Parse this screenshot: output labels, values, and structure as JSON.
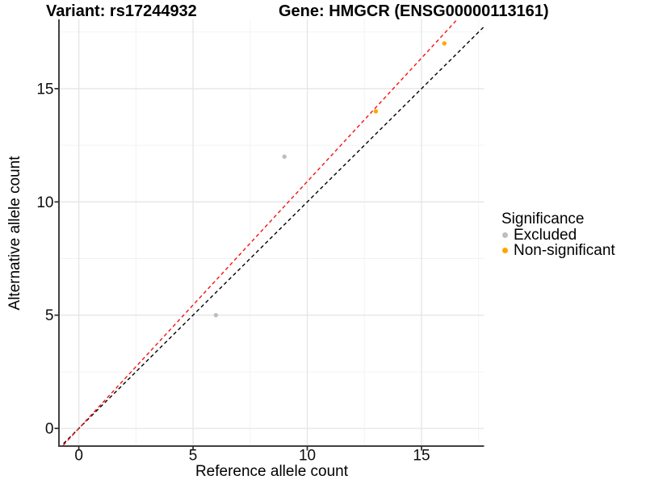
{
  "titles": {
    "variant": "Variant: rs17244932",
    "gene": "Gene: HMGCR (ENSG00000113161)"
  },
  "axes": {
    "x_label": "Reference allele count",
    "y_label": "Alternative allele count"
  },
  "legend": {
    "title": "Significance",
    "items": [
      {
        "label": "Excluded",
        "color": "#BEBEBE"
      },
      {
        "label": "Non-significant",
        "color": "#FFA500"
      }
    ]
  },
  "chart_data": {
    "type": "scatter",
    "title_left": "Variant: rs17244932",
    "title_right": "Gene: HMGCR (ENSG00000113161)",
    "xlabel": "Reference allele count",
    "ylabel": "Alternative allele count",
    "xlim": [
      -0.87,
      17.74
    ],
    "ylim": [
      -0.78,
      18.06
    ],
    "x_ticks": [
      0,
      5,
      10,
      15
    ],
    "y_ticks": [
      0,
      5,
      10,
      15
    ],
    "x_minor": [
      2.5,
      7.5,
      12.5,
      17.5
    ],
    "y_minor": [
      2.5,
      7.5,
      12.5,
      17.5
    ],
    "grid": true,
    "legend_position": "right",
    "series": [
      {
        "name": "Excluded",
        "color": "#BEBEBE",
        "points": [
          [
            6,
            5
          ],
          [
            9,
            12
          ]
        ]
      },
      {
        "name": "Non-significant",
        "color": "#FFA500",
        "points": [
          [
            13,
            14
          ],
          [
            16,
            17
          ]
        ]
      }
    ],
    "lines": [
      {
        "name": "identity",
        "slope": 1,
        "intercept": 0,
        "color": "#000000",
        "style": "dashed"
      },
      {
        "name": "fit",
        "slope": 1.09,
        "intercept": 0,
        "color": "#F50F0F",
        "style": "dashed"
      }
    ],
    "colors": {
      "grid_major": "#e5e5e5",
      "grid_minor": "#f2f2f2",
      "axis_line": "#404040",
      "tick_text": "#0d0d0d"
    }
  }
}
